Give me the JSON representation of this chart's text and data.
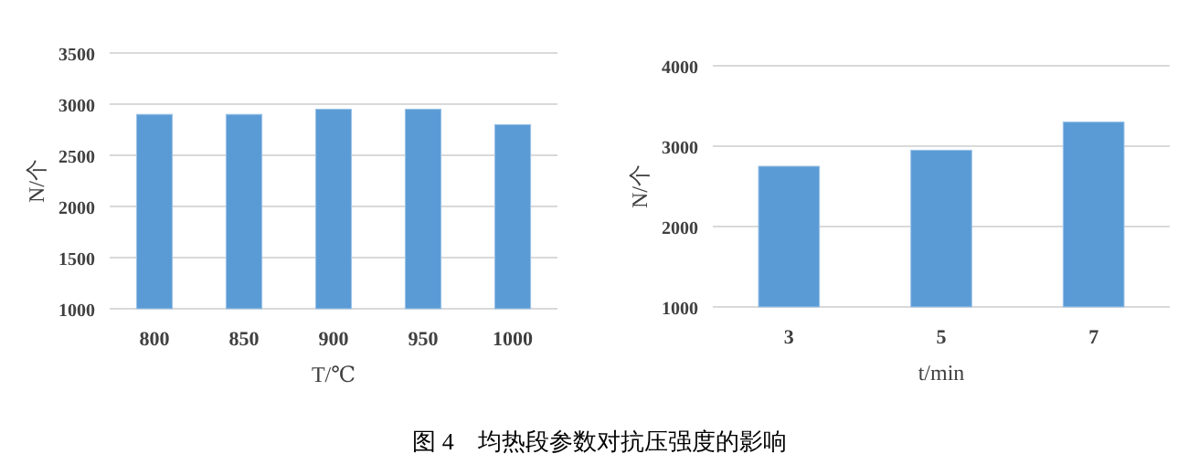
{
  "chart_data": [
    {
      "type": "bar",
      "xlabel": "T/℃",
      "ylabel": "N/个",
      "categories": [
        "800",
        "850",
        "900",
        "950",
        "1000"
      ],
      "values": [
        2900,
        2900,
        2950,
        2950,
        2800
      ],
      "color": "#5b9bd5",
      "ylim": [
        1000,
        3500
      ],
      "yticks": [
        1000,
        1500,
        2000,
        2500,
        3000,
        3500
      ],
      "grid": "y",
      "annotations": [
        "图 4　均热段参数对抗压强度的影响"
      ]
    },
    {
      "type": "bar",
      "xlabel": "t/min",
      "ylabel": "N/个",
      "categories": [
        "3",
        "5",
        "7"
      ],
      "values": [
        2750,
        2950,
        3300
      ],
      "color": "#5b9bd5",
      "ylim": [
        1000,
        4000
      ],
      "yticks": [
        1000,
        2000,
        3000,
        4000
      ],
      "grid": "y"
    }
  ]
}
